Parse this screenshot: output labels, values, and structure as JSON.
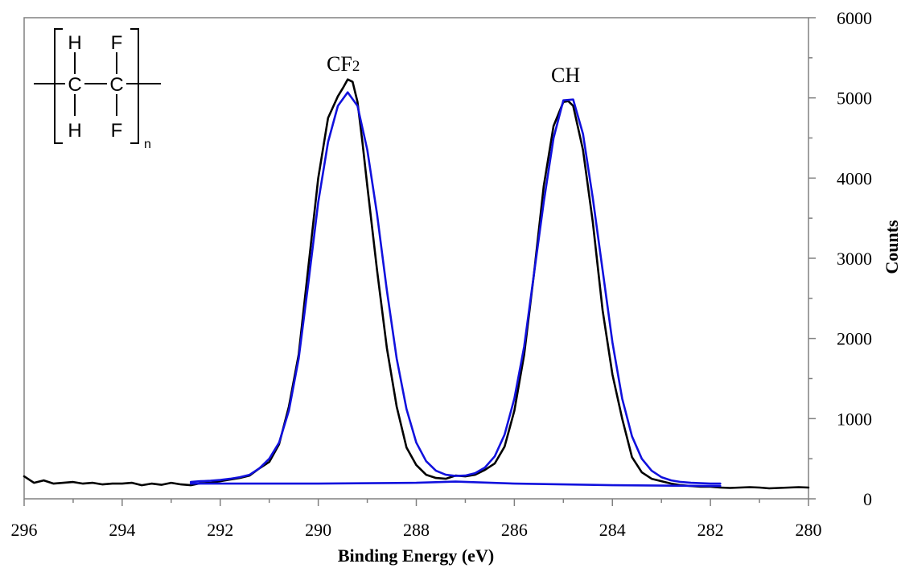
{
  "chart_data": {
    "type": "line",
    "title": "",
    "xlabel": "Binding Energy (eV)",
    "ylabel": "Counts",
    "xlim": [
      296,
      280
    ],
    "x_reversed": true,
    "ylim": [
      0,
      6000
    ],
    "x_ticks": [
      "296",
      "294",
      "292",
      "290",
      "288",
      "286",
      "284",
      "282",
      "280"
    ],
    "y_ticks": [
      "0",
      "1000",
      "2000",
      "3000",
      "4000",
      "5000",
      "6000"
    ],
    "y_axis_side": "right",
    "grid": false,
    "legend": "none",
    "annotations": [
      {
        "text": "CF",
        "subscript": "2",
        "x": 289.4,
        "y": 5350
      },
      {
        "text": "CH",
        "x": 284.9,
        "y": 5150
      }
    ],
    "structure": {
      "atoms_top": [
        "H",
        "F"
      ],
      "atoms_middle": [
        "C",
        "C"
      ],
      "atoms_bottom": [
        "H",
        "F"
      ],
      "repeat_subscript": "n"
    },
    "series": [
      {
        "color": "#000000",
        "x": [
          296.0,
          295.8,
          295.6,
          295.4,
          295.2,
          295.0,
          294.8,
          294.6,
          294.4,
          294.2,
          294.0,
          293.8,
          293.6,
          293.4,
          293.2,
          293.0,
          292.8,
          292.6,
          292.4,
          292.2,
          292.0,
          291.8,
          291.6,
          291.4,
          291.2,
          291.0,
          290.8,
          290.6,
          290.4,
          290.2,
          290.0,
          289.8,
          289.6,
          289.5,
          289.4,
          289.3,
          289.2,
          289.1,
          289.0,
          288.8,
          288.6,
          288.4,
          288.2,
          288.0,
          287.8,
          287.6,
          287.4,
          287.2,
          287.0,
          286.8,
          286.6,
          286.4,
          286.2,
          286.0,
          285.8,
          285.6,
          285.4,
          285.2,
          285.0,
          284.9,
          284.8,
          284.6,
          284.4,
          284.2,
          284.0,
          283.8,
          283.6,
          283.4,
          283.2,
          283.0,
          282.8,
          282.6,
          282.4,
          282.2,
          282.0,
          281.8,
          281.6,
          281.4,
          281.2,
          281.0,
          280.8,
          280.6,
          280.4,
          280.2,
          280.0
        ],
        "y": [
          280,
          200,
          230,
          190,
          200,
          210,
          190,
          200,
          180,
          190,
          190,
          200,
          170,
          190,
          175,
          200,
          180,
          170,
          195,
          200,
          220,
          240,
          260,
          290,
          380,
          460,
          680,
          1150,
          1800,
          2900,
          4000,
          4750,
          5020,
          5120,
          5230,
          5200,
          4950,
          4450,
          3900,
          2850,
          1880,
          1150,
          640,
          420,
          300,
          260,
          250,
          290,
          280,
          300,
          360,
          440,
          650,
          1100,
          1800,
          2800,
          3900,
          4650,
          4950,
          4960,
          4900,
          4350,
          3450,
          2350,
          1550,
          1000,
          520,
          330,
          250,
          220,
          190,
          170,
          160,
          150,
          150,
          140,
          135,
          140,
          145,
          140,
          130,
          135,
          140,
          145,
          140
        ]
      },
      {
        "color": "#1111dd",
        "x": [
          292.6,
          292.4,
          292.2,
          292.0,
          291.8,
          291.6,
          291.4,
          291.2,
          291.0,
          290.8,
          290.6,
          290.4,
          290.2,
          290.0,
          289.8,
          289.6,
          289.4,
          289.2,
          289.0,
          288.8,
          288.6,
          288.4,
          288.2,
          288.0,
          287.8,
          287.6,
          287.4,
          287.2,
          287.0,
          286.8,
          286.6,
          286.4,
          286.2,
          286.0,
          285.8,
          285.6,
          285.4,
          285.2,
          285.0,
          284.8,
          284.6,
          284.4,
          284.2,
          284.0,
          283.8,
          283.6,
          283.4,
          283.2,
          283.0,
          282.8,
          282.6,
          282.4,
          282.2,
          282.0,
          281.8
        ],
        "y": [
          210,
          220,
          225,
          235,
          250,
          270,
          300,
          380,
          500,
          700,
          1100,
          1750,
          2700,
          3700,
          4450,
          4900,
          5070,
          4900,
          4350,
          3550,
          2600,
          1750,
          1120,
          700,
          470,
          350,
          300,
          285,
          290,
          320,
          390,
          530,
          800,
          1250,
          1900,
          2800,
          3700,
          4500,
          4970,
          4980,
          4550,
          3750,
          2850,
          1950,
          1250,
          780,
          500,
          350,
          270,
          230,
          210,
          200,
          195,
          190,
          190
        ]
      },
      {
        "color": "#1111dd",
        "x": [
          292.6,
          290.0,
          288.0,
          287.2,
          286.0,
          284.0,
          282.0,
          281.8
        ],
        "y": [
          190,
          190,
          200,
          215,
          190,
          170,
          160,
          160
        ]
      }
    ]
  }
}
